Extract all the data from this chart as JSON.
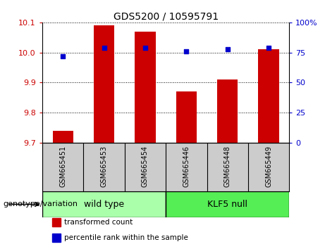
{
  "title": "GDS5200 / 10595791",
  "samples": [
    "GSM665451",
    "GSM665453",
    "GSM665454",
    "GSM665446",
    "GSM665448",
    "GSM665449"
  ],
  "transformed_counts": [
    9.74,
    10.09,
    10.07,
    9.87,
    9.91,
    10.01
  ],
  "percentile_ranks": [
    72,
    79,
    79,
    76,
    78,
    79
  ],
  "ylim_left": [
    9.7,
    10.1
  ],
  "ylim_right": [
    0,
    100
  ],
  "yticks_left": [
    9.7,
    9.8,
    9.9,
    10.0,
    10.1
  ],
  "yticks_right": [
    0,
    25,
    50,
    75,
    100
  ],
  "bar_color": "#cc0000",
  "dot_color": "#0000cc",
  "groups": [
    {
      "label": "wild type",
      "indices": [
        0,
        1,
        2
      ],
      "color": "#aaffaa"
    },
    {
      "label": "KLF5 null",
      "indices": [
        3,
        4,
        5
      ],
      "color": "#55ee55"
    }
  ],
  "group_label": "genotype/variation",
  "legend": [
    {
      "label": "transformed count",
      "color": "#cc0000"
    },
    {
      "label": "percentile rank within the sample",
      "color": "#0000cc"
    }
  ],
  "bar_width": 0.5,
  "bar_bottom": 9.7,
  "right_axis_color": "#0000cc",
  "left_axis_color": "#cc0000",
  "sample_box_color": "#cccccc",
  "ytick_labels_right": [
    "0",
    "25",
    "50",
    "75",
    "100%"
  ]
}
